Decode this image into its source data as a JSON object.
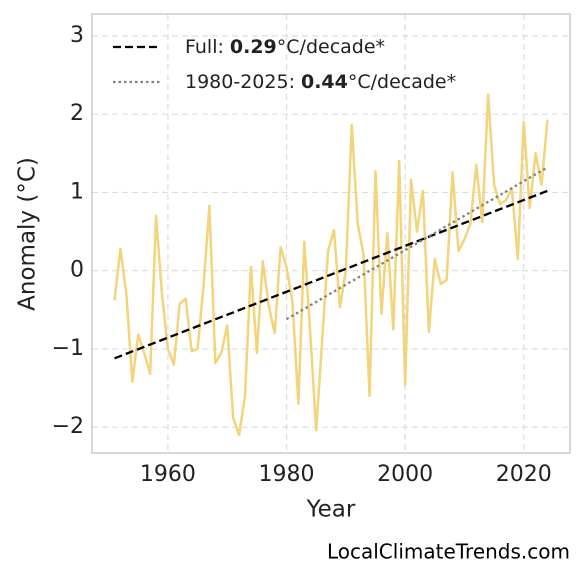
{
  "chart_data": {
    "type": "line",
    "xlabel": "Year",
    "ylabel": "Anomaly (°C)",
    "watermark": "LocalClimateTrends.com",
    "xlim": [
      1947.2,
      2027.8
    ],
    "ylim": [
      -2.33,
      3.28
    ],
    "xticks": [
      1960,
      1980,
      2000,
      2020
    ],
    "yticks": [
      {
        "value": -2,
        "label": "−2"
      },
      {
        "value": -1,
        "label": "−1"
      },
      0,
      1,
      2,
      3
    ],
    "grid": true,
    "legend": "upper left",
    "series": [
      {
        "color": "#f2d47a",
        "style": "solid",
        "x": [
          1951,
          1952,
          1953,
          1954,
          1955,
          1956,
          1957,
          1958,
          1959,
          1960,
          1961,
          1962,
          1963,
          1964,
          1965,
          1966,
          1967,
          1968,
          1969,
          1970,
          1971,
          1972,
          1973,
          1974,
          1975,
          1976,
          1977,
          1978,
          1979,
          1980,
          1981,
          1982,
          1983,
          1984,
          1985,
          1986,
          1987,
          1988,
          1989,
          1990,
          1991,
          1992,
          1993,
          1994,
          1995,
          1996,
          1997,
          1998,
          1999,
          2000,
          2001,
          2002,
          2003,
          2004,
          2005,
          2006,
          2007,
          2008,
          2009,
          2010,
          2011,
          2012,
          2013,
          2014,
          2015,
          2016,
          2017,
          2018,
          2019,
          2020,
          2021,
          2022,
          2023,
          2024
        ],
        "values": [
          -0.38,
          0.28,
          -0.3,
          -1.42,
          -0.82,
          -1.05,
          -1.32,
          0.7,
          -0.3,
          -1.0,
          -1.2,
          -0.42,
          -0.36,
          -1.03,
          -1.0,
          -0.2,
          0.83,
          -1.18,
          -1.05,
          -0.7,
          -1.88,
          -2.1,
          -1.6,
          0.05,
          -1.05,
          0.12,
          -0.45,
          -0.8,
          0.3,
          0.05,
          -0.4,
          -1.7,
          0.37,
          -0.8,
          -2.04,
          -0.9,
          0.25,
          0.52,
          -0.47,
          0.0,
          1.86,
          0.6,
          0.2,
          -1.6,
          1.27,
          -0.55,
          0.48,
          -0.75,
          1.4,
          -1.46,
          1.16,
          0.5,
          1.02,
          -0.78,
          0.15,
          -0.17,
          -0.12,
          1.26,
          0.25,
          0.4,
          0.6,
          1.35,
          0.62,
          2.25,
          1.1,
          0.85,
          0.9,
          1.05,
          0.15,
          1.9,
          0.8,
          1.5,
          1.1,
          1.93
        ]
      },
      {
        "name": "Full:",
        "slope": 0.29,
        "unit": "°C/decade*",
        "color": "#000000",
        "style": "dashed",
        "x": [
          1951,
          2024
        ],
        "values": [
          -1.12,
          1.02
        ]
      },
      {
        "name": "1980-2025:",
        "slope": 0.44,
        "unit": "°C/decade*",
        "color": "#808080",
        "style": "dotted",
        "x": [
          1980,
          2024
        ],
        "values": [
          -0.62,
          1.32
        ]
      }
    ]
  }
}
